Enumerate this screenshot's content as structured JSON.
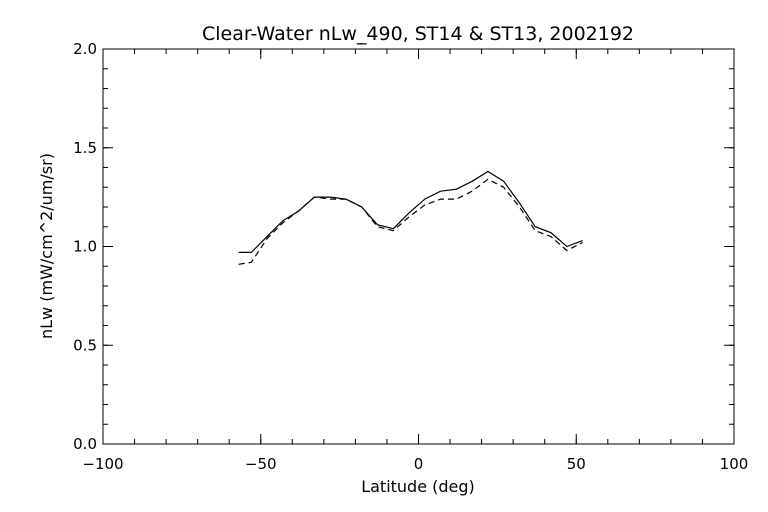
{
  "chart_data": {
    "type": "line",
    "title": "Clear-Water nLw_490, ST14 & ST13, 2002192",
    "xlabel": "Latitude (deg)",
    "ylabel": "nLw (mW/cm^2/um/sr)",
    "xlim": [
      -100,
      100
    ],
    "ylim": [
      0.0,
      2.0
    ],
    "xticks": [
      -100,
      -50,
      0,
      50,
      100
    ],
    "yticks": [
      0.0,
      0.5,
      1.0,
      1.5,
      2.0
    ],
    "xtick_labels": [
      "−100",
      "−50",
      "0",
      "50",
      "100"
    ],
    "ytick_labels": [
      "0.0",
      "0.5",
      "1.0",
      "1.5",
      "2.0"
    ],
    "grid": false,
    "series": [
      {
        "style": "solid",
        "color": "#000000",
        "x": [
          -57,
          -53,
          -48,
          -43,
          -38,
          -33,
          -28,
          -23,
          -18,
          -13,
          -8,
          -3,
          2,
          7,
          12,
          17,
          22,
          27,
          32,
          37,
          42,
          47,
          52
        ],
        "y": [
          0.97,
          0.97,
          1.05,
          1.13,
          1.18,
          1.25,
          1.25,
          1.24,
          1.2,
          1.11,
          1.09,
          1.17,
          1.24,
          1.28,
          1.29,
          1.33,
          1.38,
          1.33,
          1.22,
          1.1,
          1.07,
          1.0,
          1.03
        ]
      },
      {
        "style": "dashed",
        "color": "#000000",
        "x": [
          -57,
          -53,
          -48,
          -43,
          -38,
          -33,
          -28,
          -23,
          -18,
          -13,
          -8,
          -3,
          2,
          7,
          12,
          17,
          22,
          27,
          32,
          37,
          42,
          47,
          52
        ],
        "y": [
          0.91,
          0.92,
          1.04,
          1.12,
          1.18,
          1.25,
          1.24,
          1.24,
          1.2,
          1.1,
          1.08,
          1.15,
          1.21,
          1.24,
          1.24,
          1.28,
          1.34,
          1.3,
          1.2,
          1.08,
          1.05,
          0.98,
          1.02
        ]
      }
    ]
  }
}
